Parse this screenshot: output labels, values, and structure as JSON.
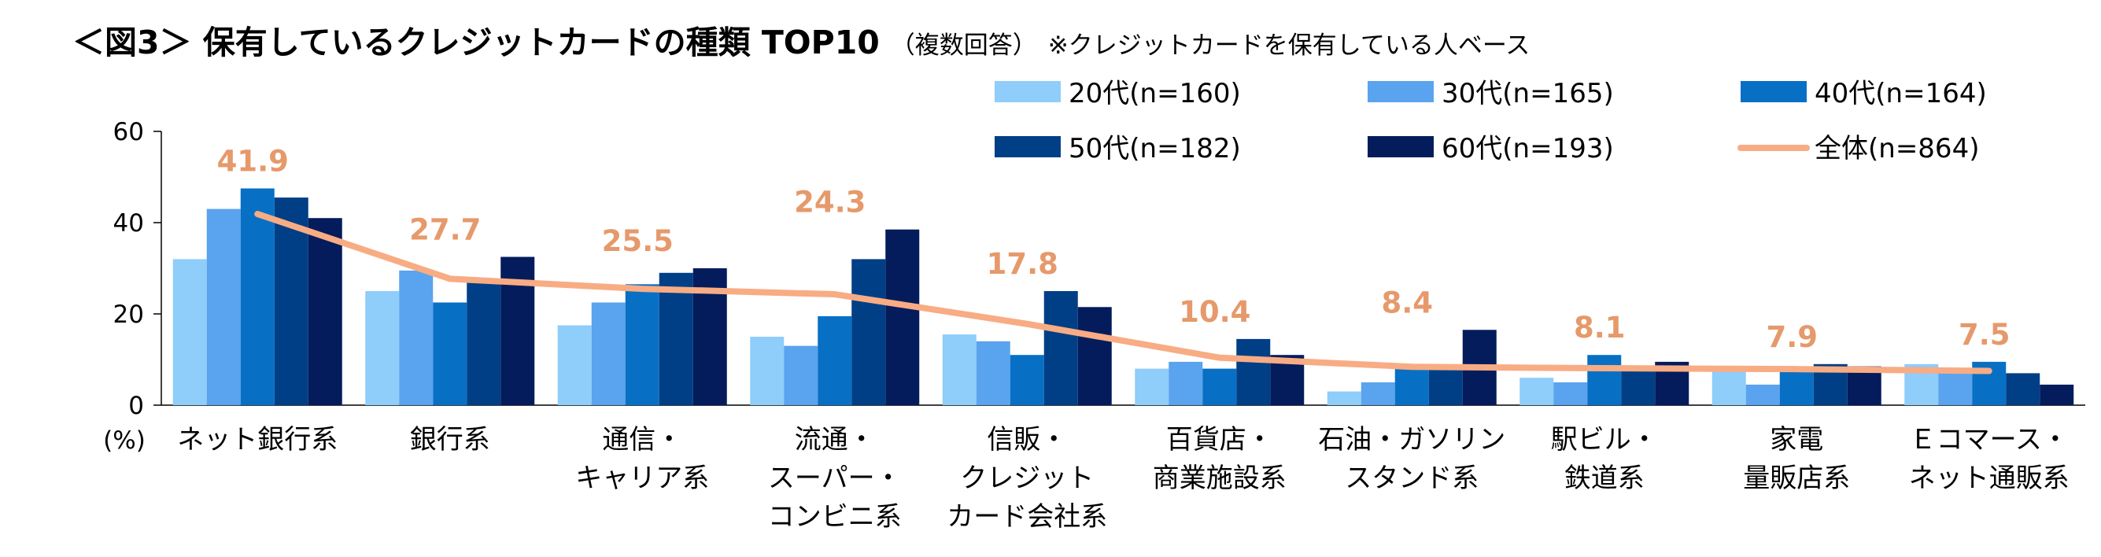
{
  "title": {
    "main": "＜図3＞ 保有しているクレジットカードの種類 TOP10",
    "sub": "（複数回答）",
    "note": "※クレジットカードを保有している人ベース"
  },
  "chart_data": {
    "type": "bar",
    "title": "＜図3＞ 保有しているクレジットカードの種類 TOP10",
    "ylabel": "(%)",
    "ylim": [
      0,
      60
    ],
    "yticks": [
      0,
      20,
      40,
      60
    ],
    "grid": false,
    "legend_position": "top-right",
    "categories": [
      [
        "ネット銀行系"
      ],
      [
        "銀行系"
      ],
      [
        "通信・",
        "キャリア系"
      ],
      [
        "流通・",
        "スーパー・",
        "コンビニ系"
      ],
      [
        "信販・",
        "クレジット",
        "カード会社系"
      ],
      [
        "百貨店・",
        "商業施設系"
      ],
      [
        "石油・ガソリン",
        "スタンド系"
      ],
      [
        "駅ビル・",
        "鉄道系"
      ],
      [
        "家電",
        "量販店系"
      ],
      [
        "Ｅコマース・",
        "ネット通販系"
      ]
    ],
    "series": [
      {
        "name": "20代(n=160)",
        "color": "#8fcdfa",
        "values": [
          32,
          25,
          17.5,
          15,
          15.5,
          8,
          3,
          6,
          7.5,
          9
        ]
      },
      {
        "name": "30代(n=165)",
        "color": "#5aa3ee",
        "values": [
          43,
          29.5,
          22.5,
          13,
          14,
          9.5,
          5,
          5,
          4.5,
          7.5
        ]
      },
      {
        "name": "40代(n=164)",
        "color": "#0870c4",
        "values": [
          47.5,
          22.5,
          26.5,
          19.5,
          11,
          8,
          8,
          11,
          7.5,
          9.5
        ]
      },
      {
        "name": "50代(n=182)",
        "color": "#003f86",
        "values": [
          45.5,
          27,
          29,
          32,
          25,
          14.5,
          8,
          8.5,
          9,
          7
        ]
      },
      {
        "name": "60代(n=193)",
        "color": "#041c5c",
        "values": [
          41,
          32.5,
          30,
          38.5,
          21.5,
          11,
          16.5,
          9.5,
          8.5,
          4.5
        ]
      }
    ],
    "total": {
      "name": "全体(n=864)",
      "color": "#f8ac84",
      "label_color": "#e6996b",
      "values": [
        41.9,
        27.7,
        25.5,
        24.3,
        17.8,
        10.4,
        8.4,
        8.1,
        7.9,
        7.5
      ]
    }
  }
}
